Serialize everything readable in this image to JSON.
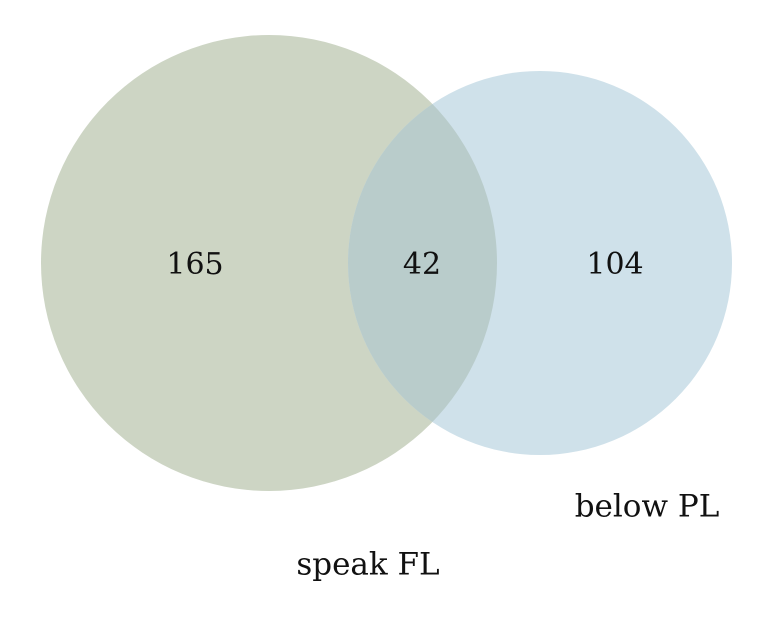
{
  "sets": [
    {
      "id": "A",
      "label": "speak FL",
      "only_count": "165",
      "color": "#cdd5c4"
    },
    {
      "id": "B",
      "label": "below PL",
      "only_count": "104",
      "color": "#cfe1ea"
    }
  ],
  "intersection": {
    "count": "42",
    "color": "#b9cccb"
  }
}
